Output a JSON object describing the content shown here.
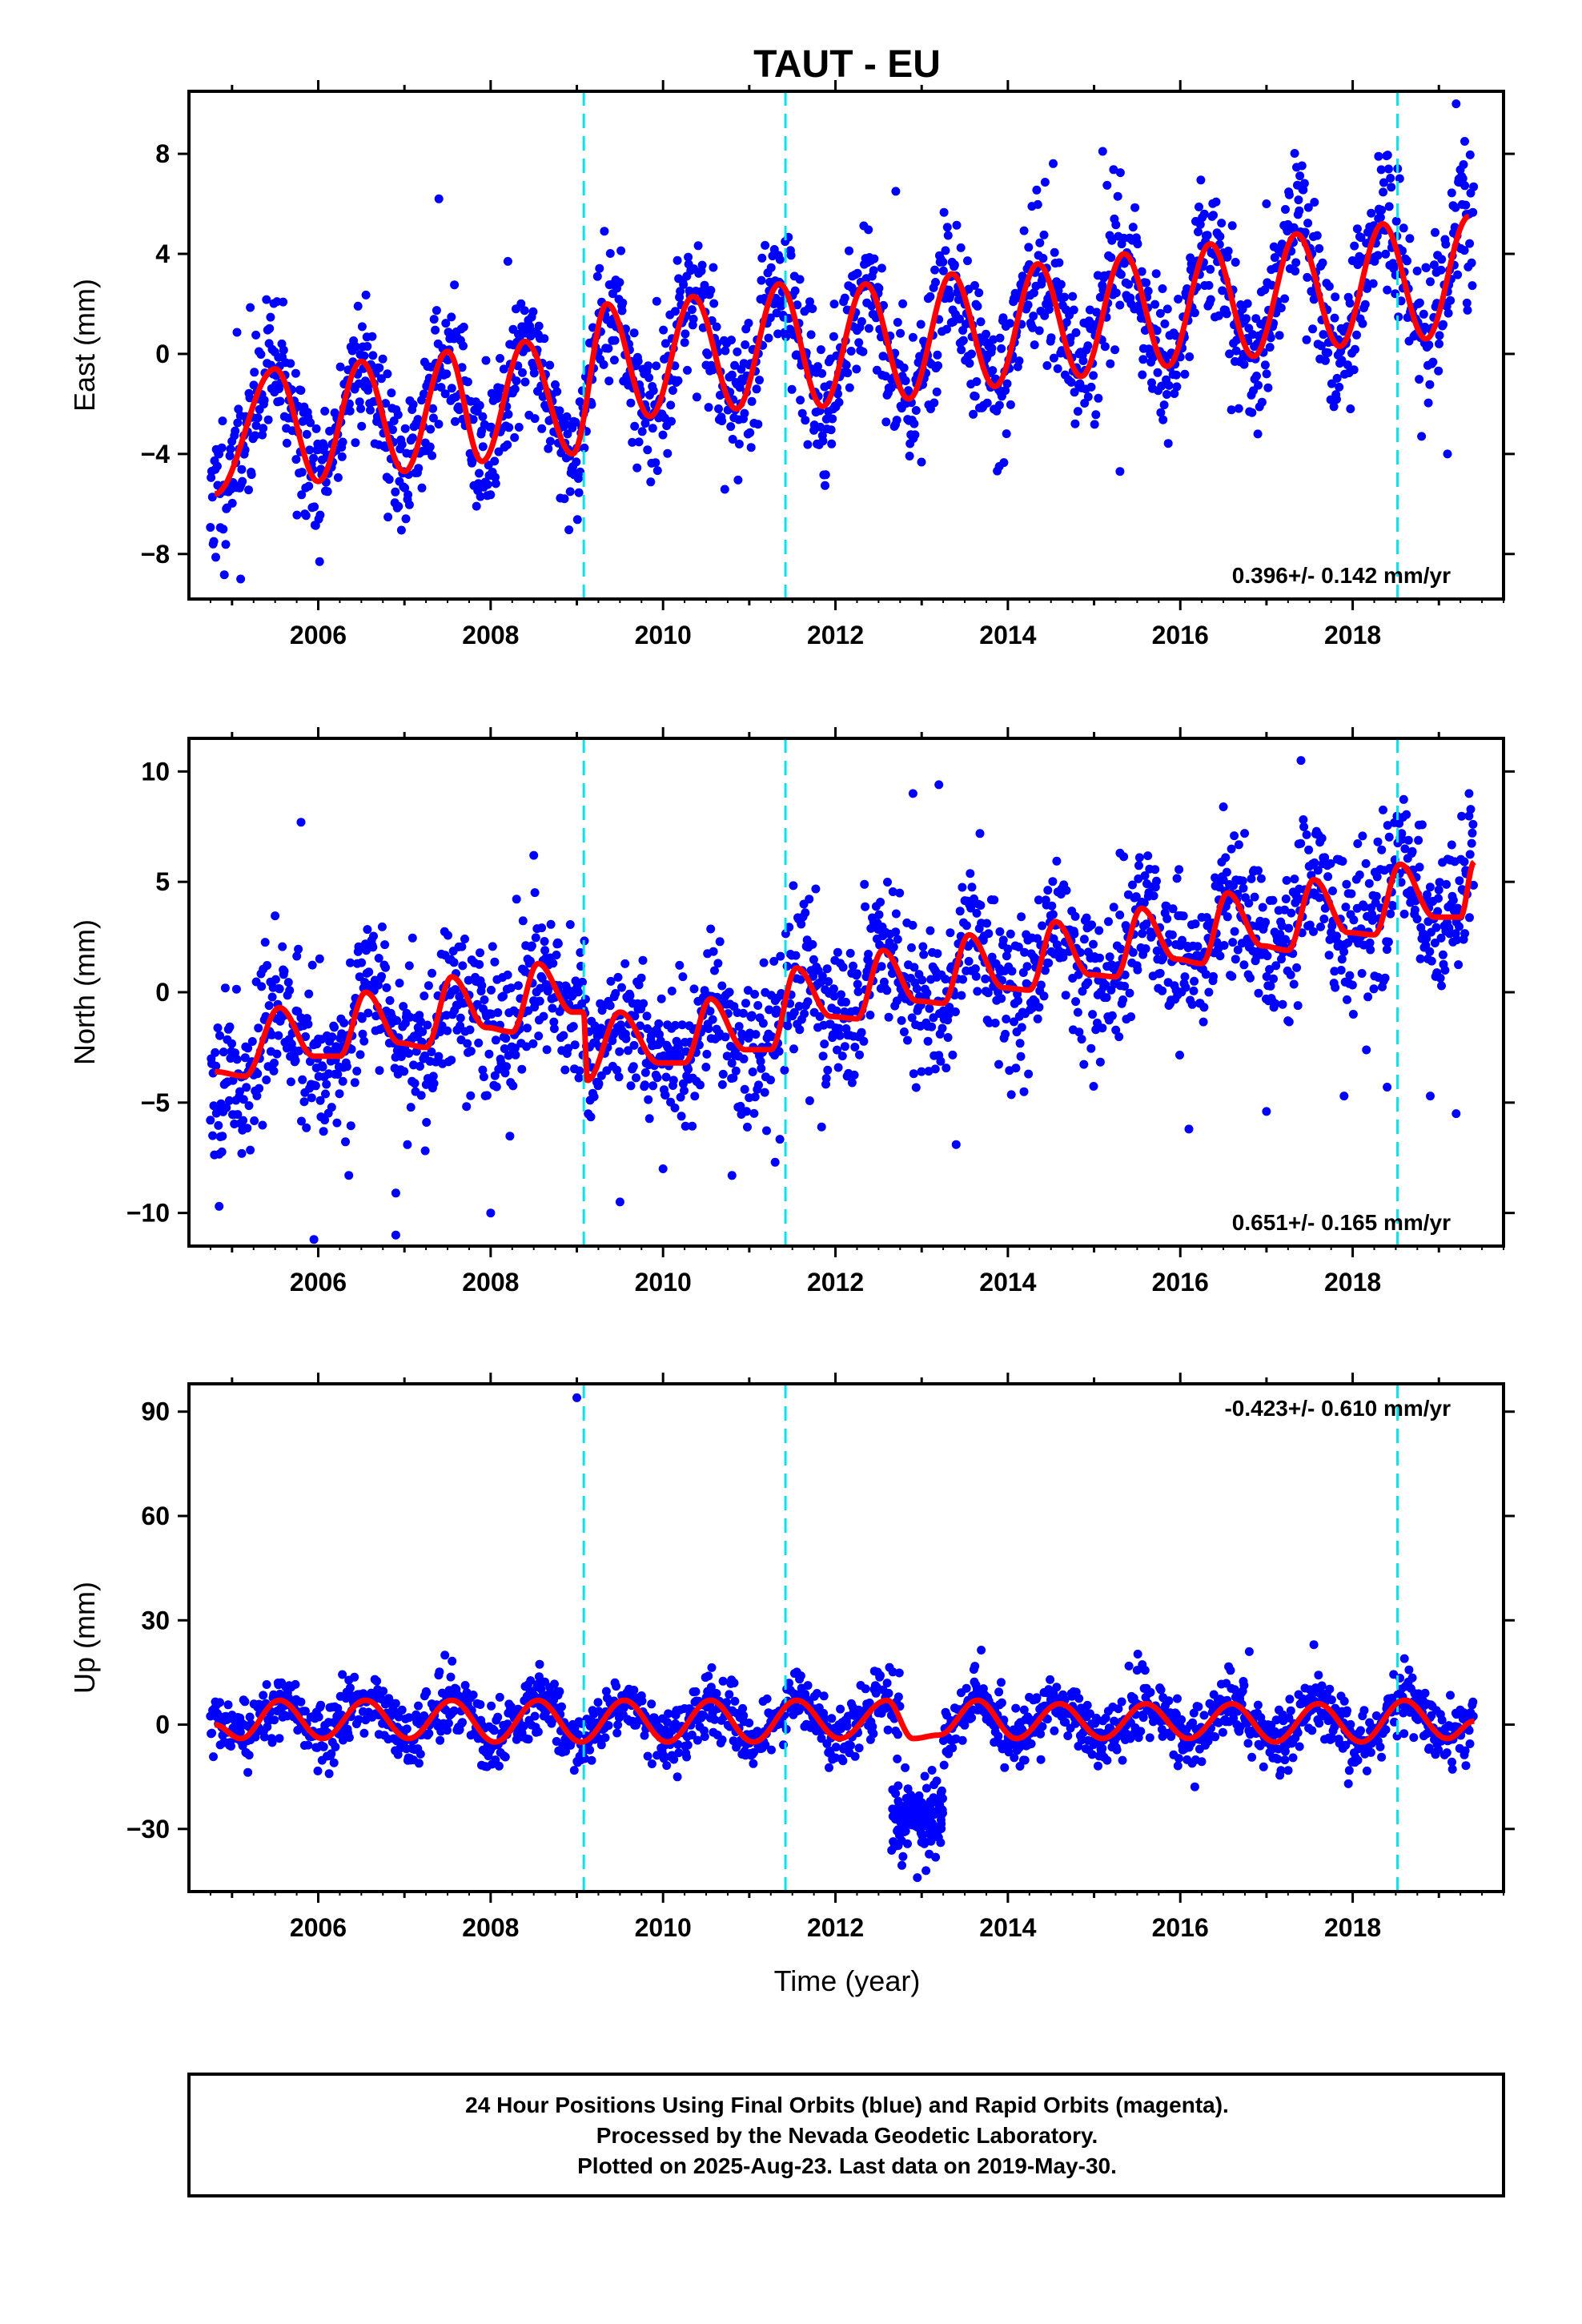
{
  "chart_data": {
    "type": "scatter",
    "title": "TAUT - EU",
    "x_label": "Time (year)",
    "x_range": [
      2004.5,
      2019.75
    ],
    "x_ticks": [
      2006,
      2008,
      2010,
      2012,
      2014,
      2016,
      2018
    ],
    "x_tick_labels": [
      "2006",
      "2008",
      "2010",
      "2012",
      "2014",
      "2016",
      "2018"
    ],
    "x_range_data": [
      2004.75,
      2019.41
    ],
    "event_lines": [
      2009.08,
      2011.42,
      2018.52
    ],
    "colors": {
      "points": "#0000ff",
      "model": "#ff0000",
      "event": "#00e5ee",
      "frame": "#000000"
    },
    "grid": false,
    "panels": [
      {
        "ylabel": "East (mm)",
        "ylim": [
          -9.8,
          10.5
        ],
        "yticks": [
          -8,
          -4,
          0,
          4,
          8
        ],
        "ytick_labels": [
          "−8",
          "−4",
          "0",
          "4",
          "8"
        ],
        "rate_text": "0.396+/- 0.142 mm/yr",
        "rate_position": "bottom-right",
        "model": {
          "x": [
            2004.8,
            2005.5,
            2006.0,
            2006.5,
            2007.0,
            2007.5,
            2007.9,
            2008.4,
            2008.95,
            2009.35,
            2009.85,
            2010.35,
            2010.85,
            2011.35,
            2011.85,
            2012.35,
            2012.85,
            2013.35,
            2013.85,
            2014.35,
            2014.85,
            2015.35,
            2015.85,
            2016.35,
            2016.85,
            2017.35,
            2017.85,
            2018.35,
            2018.85,
            2019.35
          ],
          "y": [
            -5.6,
            -0.6,
            -5.1,
            -0.3,
            -4.7,
            0.1,
            -4.3,
            0.5,
            -4.0,
            2.0,
            -2.5,
            2.3,
            -2.2,
            2.8,
            -2.1,
            2.8,
            -1.8,
            3.2,
            -1.3,
            3.6,
            -0.9,
            4.0,
            -0.5,
            4.4,
            -0.1,
            4.8,
            0.3,
            5.2,
            0.6,
            5.5
          ]
        },
        "scatter": {
          "sigma": 1.4,
          "seed": 11,
          "count": 1900,
          "outliers": {
            "x": [
              2005.1,
              2007.4,
              2008.2,
              2011.9,
              2012.7,
              2013.9,
              2015.1,
              2015.3,
              2017.0,
              2019.2,
              2019.3,
              2019.1,
              2016.9,
              2018.3
            ],
            "y": [
              -9.0,
              6.2,
              3.7,
              -3.0,
              6.5,
              -4.5,
              8.1,
              -4.7,
              6.0,
              10.0,
              8.5,
              -4.0,
              -3.2,
              7.9
            ]
          }
        }
      },
      {
        "ylabel": "North (mm)",
        "ylim": [
          -11.5,
          11.5
        ],
        "yticks": [
          -10,
          -5,
          0,
          5,
          10
        ],
        "ytick_labels": [
          "−10",
          "−5",
          "0",
          "5",
          "10"
        ],
        "rate_text": "0.651+/- 0.165 mm/yr",
        "rate_position": "bottom-right",
        "model": {
          "x": [
            2004.8,
            2005.15,
            2005.55,
            2005.95,
            2006.25,
            2006.55,
            2006.95,
            2007.25,
            2007.55,
            2007.95,
            2008.25,
            2008.55,
            2008.95,
            2009.08,
            2009.12,
            2009.5,
            2009.95,
            2010.25,
            2010.55,
            2010.95,
            2011.25,
            2011.55,
            2011.95,
            2012.25,
            2012.55,
            2012.95,
            2013.25,
            2013.55,
            2013.95,
            2014.25,
            2014.55,
            2014.95,
            2015.25,
            2015.55,
            2015.95,
            2016.25,
            2016.55,
            2016.95,
            2017.25,
            2017.55,
            2017.95,
            2018.25,
            2018.55,
            2018.95,
            2019.25,
            2019.41
          ],
          "y": [
            -3.6,
            -3.8,
            -0.7,
            -2.9,
            -2.9,
            0.0,
            -2.3,
            -2.5,
            0.7,
            -1.6,
            -1.8,
            1.3,
            -0.9,
            -0.9,
            -4.0,
            -0.9,
            -3.2,
            -3.2,
            -0.3,
            -2.6,
            -2.6,
            1.1,
            -1.1,
            -1.2,
            1.9,
            -0.4,
            -0.5,
            2.6,
            0.2,
            0.1,
            3.2,
            0.8,
            0.7,
            3.8,
            1.5,
            1.3,
            4.5,
            2.1,
            1.9,
            5.1,
            2.7,
            2.6,
            5.8,
            3.4,
            3.4,
            5.9
          ]
        },
        "scatter": {
          "sigma": 1.7,
          "seed": 23,
          "count": 1900,
          "outliers": {
            "x": [
              2004.85,
              2005.8,
              2005.95,
              2006.9,
              2006.9,
              2008.0,
              2008.5,
              2009.5,
              2010.0,
              2010.8,
              2011.3,
              2012.9,
              2013.2,
              2013.4,
              2015.3,
              2016.1,
              2016.5,
              2017.0,
              2017.4,
              2017.9,
              2018.4,
              2018.9,
              2019.2,
              2019.35
            ],
            "y": [
              -9.7,
              7.7,
              -11.2,
              -9.1,
              -11.0,
              -10.0,
              6.2,
              -9.5,
              -8.0,
              -8.3,
              -7.7,
              9.0,
              9.4,
              -6.9,
              6.3,
              -6.2,
              8.4,
              -5.4,
              10.5,
              -4.7,
              -4.3,
              -4.7,
              -5.5,
              9.0
            ]
          }
        }
      },
      {
        "ylabel": "Up (mm)",
        "ylim": [
          -48,
          98
        ],
        "yticks": [
          -30,
          0,
          30,
          60,
          90
        ],
        "ytick_labels": [
          "−30",
          "0",
          "30",
          "60",
          "90"
        ],
        "rate_text": "-0.423+/- 0.610 mm/yr",
        "rate_position": "top-right",
        "model": {
          "x": [
            2004.8,
            2005.1,
            2005.55,
            2006.05,
            2006.55,
            2007.05,
            2007.55,
            2008.05,
            2008.55,
            2009.05,
            2009.55,
            2010.05,
            2010.55,
            2011.05,
            2011.55,
            2012.05,
            2012.6,
            2012.9,
            2013.2,
            2013.65,
            2014.1,
            2014.6,
            2015.1,
            2015.6,
            2016.1,
            2016.6,
            2017.1,
            2017.6,
            2018.1,
            2018.6,
            2019.1,
            2019.41
          ],
          "y": [
            0,
            -4,
            7,
            -4,
            7,
            -4,
            7,
            -5,
            7,
            -5,
            7,
            -5,
            7,
            -5,
            7,
            -4,
            7,
            -4,
            -3,
            7,
            -4,
            6,
            -4,
            6,
            -4,
            6,
            -5,
            6,
            -5,
            7,
            -4,
            1
          ]
        },
        "scatter": {
          "sigma": 4.5,
          "seed": 37,
          "count": 1800,
          "gap": [
            2012.75,
            2013.25
          ],
          "dip": {
            "x_from": 2012.65,
            "x_to": 2013.25,
            "center": -27,
            "spread": 8,
            "count": 140
          },
          "outliers": {
            "x": [
              2009.0,
              2012.95,
              2013.05,
              2016.8,
              2017.55,
              2017.95,
              2018.6
            ],
            "y": [
              94,
              -44,
              -42,
              21,
              23,
              -17,
              19
            ]
          }
        }
      }
    ],
    "footer_lines": [
      "24 Hour Positions Using Final Orbits (blue) and Rapid Orbits (magenta).",
      "Processed by the Nevada Geodetic Laboratory.",
      "Plotted on 2025-Aug-23. Last data on 2019-May-30."
    ]
  }
}
